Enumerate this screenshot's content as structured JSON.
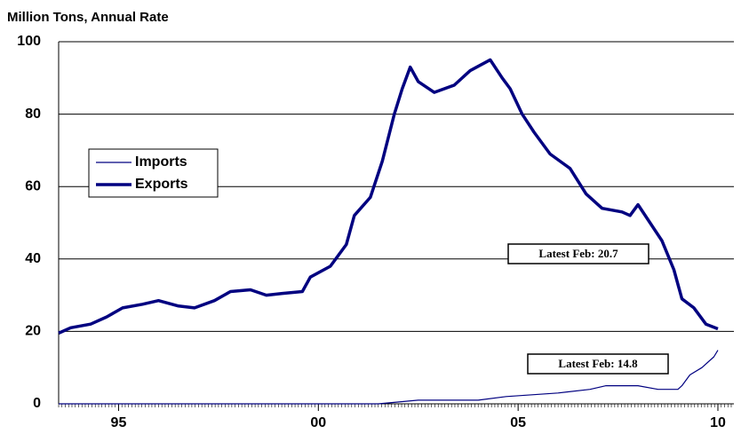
{
  "chart_data": {
    "type": "line",
    "title": "Million Tons, Annual Rate",
    "xlim": [
      1993.5,
      2010.4
    ],
    "xticks": [
      {
        "value": 1995,
        "label": "95"
      },
      {
        "value": 2000,
        "label": "00"
      },
      {
        "value": 2005,
        "label": "05"
      },
      {
        "value": 2010,
        "label": "10"
      }
    ],
    "ylim": [
      0,
      100
    ],
    "yticks": [
      0,
      20,
      40,
      60,
      80,
      100
    ],
    "grid": true,
    "legend": "left",
    "series": [
      {
        "name": "Imports",
        "color": "#000080",
        "x": [
          1993.5,
          2001.5,
          2002.5,
          2004.0,
          2004.7,
          2006.0,
          2006.8,
          2007.2,
          2008.0,
          2008.5,
          2009.0,
          2009.1,
          2009.3,
          2009.6,
          2009.9,
          2010.0
        ],
        "values": [
          0,
          0,
          1,
          1,
          2,
          3,
          4,
          5,
          5,
          4,
          4,
          5,
          8,
          10,
          13,
          14.8
        ]
      },
      {
        "name": "Exports",
        "color": "#000080",
        "x": [
          1993.5,
          1993.8,
          1994.3,
          1994.7,
          1995.1,
          1995.6,
          1996.0,
          1996.5,
          1996.9,
          1997.4,
          1997.8,
          1998.3,
          1998.7,
          1999.1,
          1999.6,
          1999.8,
          2000.3,
          2000.7,
          2000.9,
          2001.3,
          2001.6,
          2001.9,
          2002.1,
          2002.3,
          2002.5,
          2002.9,
          2003.4,
          2003.8,
          2004.3,
          2004.6,
          2004.8,
          2005.1,
          2005.4,
          2005.8,
          2006.3,
          2006.7,
          2007.1,
          2007.6,
          2007.8,
          2008.0,
          2008.3,
          2008.6,
          2008.9,
          2009.1,
          2009.4,
          2009.7,
          2010.0
        ],
        "values": [
          19.5,
          21,
          22,
          24,
          26.5,
          27.5,
          28.5,
          27,
          26.5,
          28.5,
          31,
          31.5,
          30,
          30.5,
          31,
          35,
          38,
          44,
          52,
          57,
          67,
          80,
          87,
          93,
          89,
          86,
          88,
          92,
          95,
          90,
          87,
          80,
          75,
          69,
          65,
          58,
          54,
          53,
          52,
          55,
          50,
          45,
          37,
          29,
          26.5,
          22,
          20.7
        ]
      }
    ],
    "annotations": [
      "Latest Feb: 20.7",
      "Latest Feb: 14.8"
    ]
  }
}
